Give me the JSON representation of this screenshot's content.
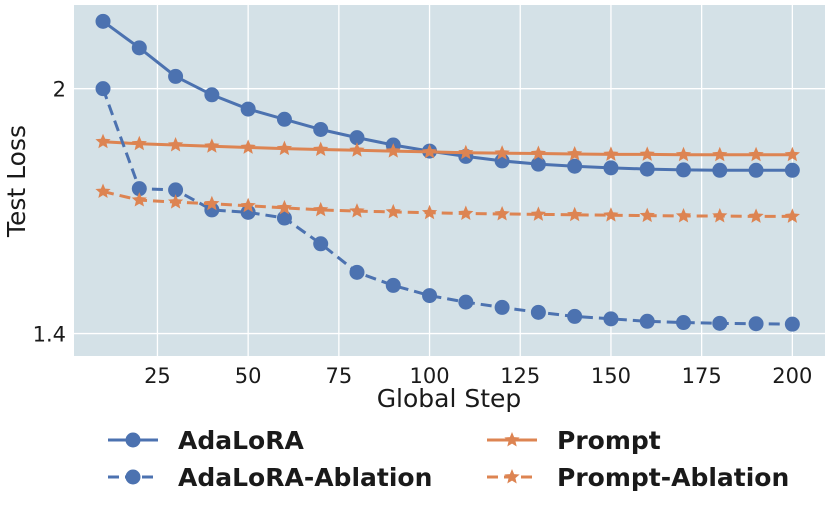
{
  "chart_data": {
    "type": "line",
    "title": "",
    "xlabel": "Global Step",
    "ylabel": "Test Loss",
    "xlim": [
      2,
      209
    ],
    "ylim": [
      1.345,
      2.205
    ],
    "xticks": [
      25,
      50,
      75,
      100,
      125,
      150,
      175,
      200
    ],
    "yticks": [
      1.4,
      2.0
    ],
    "ytick_labels": [
      "1.4",
      "2"
    ],
    "grid": true,
    "x": [
      10,
      20,
      30,
      40,
      50,
      60,
      70,
      80,
      90,
      100,
      110,
      120,
      130,
      140,
      150,
      160,
      170,
      180,
      190,
      200
    ],
    "series": [
      {
        "name": "AdaLoRA",
        "color": "#4c72b0",
        "linestyle": "solid",
        "marker": "circle",
        "values": [
          2.165,
          2.1,
          2.03,
          1.985,
          1.95,
          1.925,
          1.9,
          1.88,
          1.862,
          1.847,
          1.834,
          1.823,
          1.815,
          1.81,
          1.806,
          1.803,
          1.801,
          1.8,
          1.8,
          1.8
        ]
      },
      {
        "name": "Prompt",
        "color": "#dd8452",
        "linestyle": "solid",
        "marker": "star",
        "values": [
          1.87,
          1.865,
          1.862,
          1.859,
          1.856,
          1.853,
          1.851,
          1.849,
          1.847,
          1.845,
          1.843,
          1.842,
          1.841,
          1.84,
          1.839,
          1.839,
          1.838,
          1.838,
          1.838,
          1.838
        ]
      },
      {
        "name": "AdaLoRA-Ablation",
        "color": "#4c72b0",
        "linestyle": "dashed",
        "marker": "circle",
        "values": [
          2.0,
          1.755,
          1.752,
          1.703,
          1.697,
          1.683,
          1.62,
          1.55,
          1.518,
          1.493,
          1.477,
          1.464,
          1.452,
          1.442,
          1.436,
          1.43,
          1.427,
          1.425,
          1.424,
          1.423
        ]
      },
      {
        "name": "Prompt-Ablation",
        "color": "#dd8452",
        "linestyle": "dashed",
        "marker": "star",
        "values": [
          1.748,
          1.727,
          1.722,
          1.718,
          1.713,
          1.708,
          1.703,
          1.7,
          1.698,
          1.696,
          1.694,
          1.693,
          1.692,
          1.691,
          1.69,
          1.689,
          1.688,
          1.688,
          1.687,
          1.687
        ]
      }
    ],
    "legend": {
      "placement": "bottom",
      "entries": [
        "AdaLoRA",
        "Prompt",
        "AdaLoRA-Ablation",
        "Prompt-Ablation"
      ]
    },
    "colors": {
      "background": "#d4e1e7",
      "grid": "#ffffff",
      "text": "#1a1a1a"
    }
  }
}
